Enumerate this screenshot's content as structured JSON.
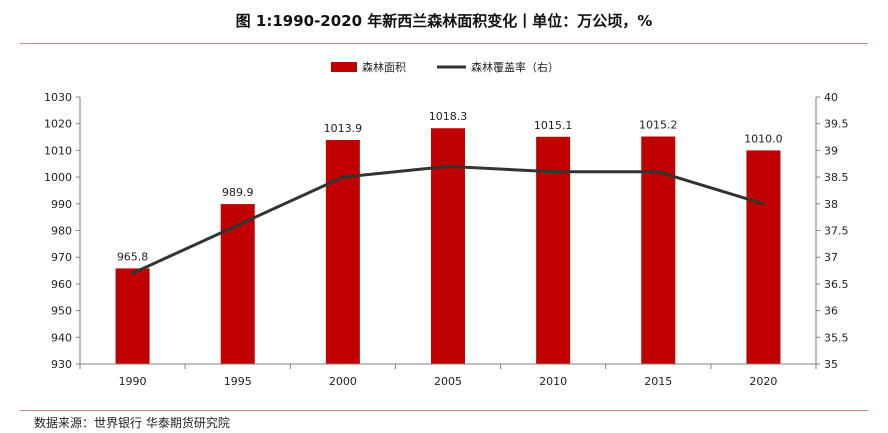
{
  "header": {
    "title": "图 1:1990-2020 年新西兰森林面积变化丨单位：万公顷，%"
  },
  "footer": {
    "source": "数据来源：世界银行 华泰期货研究院"
  },
  "chart_data": {
    "type": "bar",
    "categories": [
      "1990",
      "1995",
      "2000",
      "2005",
      "2010",
      "2015",
      "2020"
    ],
    "series": [
      {
        "name": "森林面积",
        "type": "bar",
        "axis": "left",
        "color": "#c00000",
        "values": [
          965.8,
          989.9,
          1013.9,
          1018.3,
          1015.1,
          1015.2,
          1010.0
        ],
        "labels": [
          "965.8",
          "989.9",
          "1013.9",
          "1018.3",
          "1015.1",
          "1015.2",
          "1010.0"
        ]
      },
      {
        "name": "森林覆盖率（右）",
        "type": "line",
        "axis": "right",
        "color": "#333333",
        "values": [
          36.7,
          37.6,
          38.5,
          38.7,
          38.6,
          38.6,
          38.0
        ]
      }
    ],
    "y_left": {
      "min": 930,
      "max": 1030,
      "step": 10,
      "ticks": [
        "930",
        "940",
        "950",
        "960",
        "970",
        "980",
        "990",
        "1000",
        "1010",
        "1020",
        "1030"
      ]
    },
    "y_right": {
      "min": 35,
      "max": 40,
      "step": 0.5,
      "ticks": [
        "35",
        "35.5",
        "36",
        "36.5",
        "37",
        "37.5",
        "38",
        "38.5",
        "39",
        "39.5",
        "40"
      ]
    },
    "legend_position": "top-center",
    "grid": false
  }
}
